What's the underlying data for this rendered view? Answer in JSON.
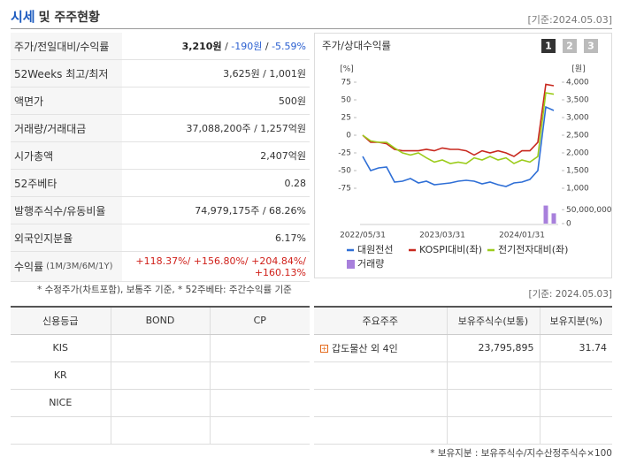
{
  "header": {
    "title": "시세",
    "title_suffix": "및 주주현황",
    "as_of": "[기준:2024.05.03]"
  },
  "price_table": {
    "rows": [
      {
        "label": "주가/전일대비/수익률",
        "value": [
          "3,210원",
          " / ",
          "-190원",
          " / ",
          "-5.59%"
        ]
      },
      {
        "label": "52Weeks 최고/최저",
        "value": "3,625원 / 1,001원"
      },
      {
        "label": "액면가",
        "value": "500원"
      },
      {
        "label": "거래량/거래대금",
        "value": "37,088,200주 / 1,257억원"
      },
      {
        "label": "시가총액",
        "value": "2,407억원"
      },
      {
        "label": "52주베타",
        "value": "0.28"
      },
      {
        "label": "발행주식수/유동비율",
        "value": "74,979,175주 / 68.26%"
      },
      {
        "label": "외국인지분율",
        "value": "6.17%"
      },
      {
        "label": "수익률",
        "sublabel": "(1M/3M/6M/1Y)",
        "value": "+118.37%/ +156.80%/ +204.84%/ +160.13%"
      }
    ],
    "note": "* 수정주가(차트포함), 보통주 기준, * 52주베타: 주간수익률 기준"
  },
  "chart_data": {
    "type": "line",
    "title": "주가/상대수익률",
    "buttons": [
      "1",
      "2",
      "3"
    ],
    "y_unit": "[%]",
    "y2_unit": "[원]",
    "categories": [
      "2022/05/31",
      null,
      null,
      null,
      null,
      null,
      null,
      null,
      null,
      null,
      "2023/03/31",
      null,
      null,
      null,
      null,
      null,
      null,
      null,
      null,
      null,
      "2024/01/31",
      null,
      null,
      null,
      null
    ],
    "ylim": [
      -85,
      85
    ],
    "yticks": [
      75,
      50,
      25,
      0,
      -25,
      -50,
      -75
    ],
    "y2lim": [
      800,
      4200
    ],
    "y2ticks": [
      {
        "value": 4000,
        "label": "4,000"
      },
      {
        "value": 3500,
        "label": "3,500"
      },
      {
        "value": 3000,
        "label": "3,000"
      },
      {
        "value": 2500,
        "label": "2,500"
      },
      {
        "value": 2000,
        "label": "2,000"
      },
      {
        "value": 1500,
        "label": "1,500"
      },
      {
        "value": 1000,
        "label": "1,000"
      }
    ],
    "y3lim": [
      0,
      70000000
    ],
    "y3ticks": [
      {
        "value": 50000000,
        "label": "50,000,000"
      },
      0
    ],
    "series": [
      {
        "name": "대원전선",
        "color": "#2f6fd6",
        "axis": "y2",
        "values": [
          1900,
          1500,
          1575,
          1600,
          1175,
          1200,
          1275,
          1150,
          1200,
          1100,
          1125,
          1150,
          1200,
          1225,
          1200,
          1125,
          1175,
          1100,
          1050,
          1150,
          1175,
          1250,
          1500,
          3300,
          3200
        ]
      },
      {
        "name": "KOSPI대비(좌)",
        "color": "#c8281e",
        "axis": "y",
        "values": [
          0,
          -10,
          -10,
          -12,
          -20,
          -22,
          -22,
          -22,
          -20,
          -22,
          -18,
          -20,
          -20,
          -22,
          -28,
          -22,
          -25,
          -22,
          -25,
          -30,
          -22,
          -22,
          -10,
          72,
          70
        ]
      },
      {
        "name": "전기전자대비(좌)",
        "color": "#9ccc1c",
        "axis": "y",
        "values": [
          0,
          -8,
          -10,
          -10,
          -18,
          -25,
          -28,
          -25,
          -32,
          -38,
          -35,
          -40,
          -38,
          -40,
          -32,
          -35,
          -30,
          -35,
          -32,
          -40,
          -35,
          -38,
          -30,
          60,
          58
        ]
      },
      {
        "name": "거래량",
        "color": "#a880dc",
        "axis": "y3",
        "type": "bar",
        "values": [
          null,
          null,
          null,
          null,
          null,
          null,
          null,
          null,
          null,
          null,
          null,
          null,
          null,
          null,
          null,
          null,
          null,
          null,
          null,
          null,
          null,
          null,
          null,
          65000000,
          37000000
        ]
      }
    ]
  },
  "credit_table": {
    "headers": [
      "신용등급",
      "BOND",
      "CP"
    ],
    "rows": [
      "KIS",
      "KR",
      "NICE"
    ]
  },
  "holders_table": {
    "as_of": "[기준: 2024.05.03]",
    "headers": [
      "주요주주",
      "보유주식수(보통)",
      "보유지분(%)"
    ],
    "rows": [
      [
        "갑도물산 외 4인",
        "23,795,895",
        "31.74"
      ]
    ],
    "note": "* 보유지분 : 보유주식수/지수산정주식수×100"
  }
}
